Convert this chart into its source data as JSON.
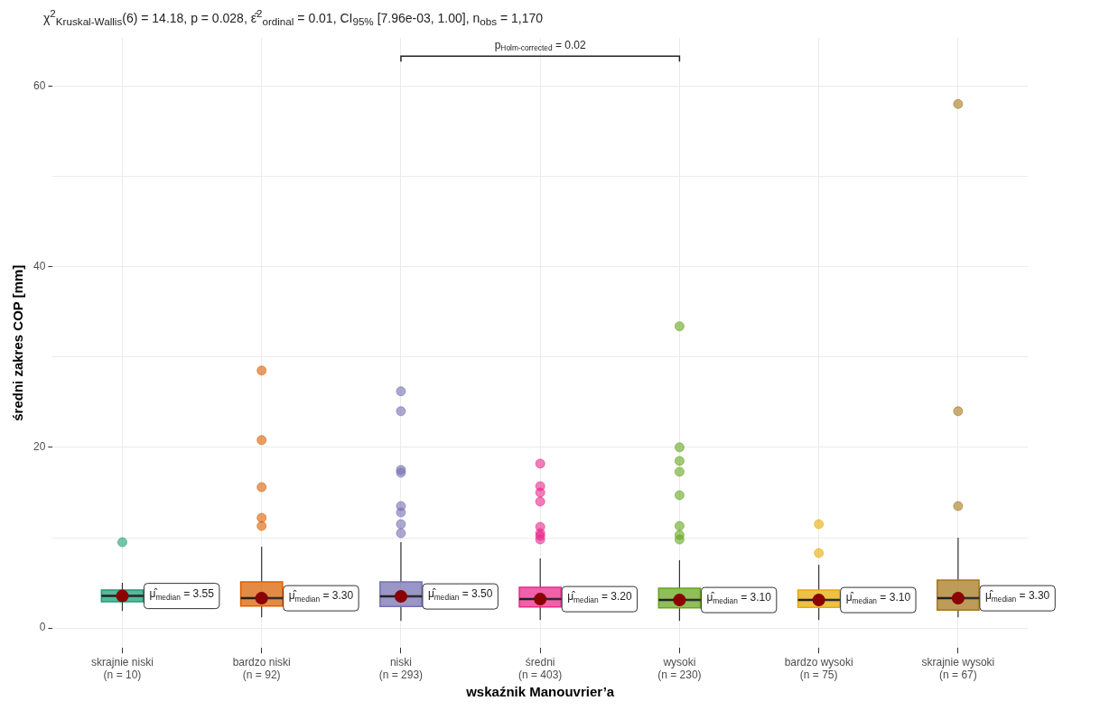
{
  "chart_data": {
    "type": "box",
    "title": "χ$^{2}$$_{Kruskal-Wallis}$(6) = 14.18, p = 0.028, ε̂$^{2}$$_{ordinal}$ = 0.01, CI$_{95%}$ [7.96e-03, 1.00], n$_{obs}$ = 1,170",
    "xlabel": "wskaźnik Manouvrier’a",
    "ylabel": "średni zakres COP [mm]",
    "categories": [
      "skrajnie niski\n(n = 10)",
      "bardzo niski\n(n = 92)",
      "niski\n(n = 293)",
      "średni\n(n = 403)",
      "wysoki\n(n = 230)",
      "bardzo wysoki\n(n = 75)",
      "skrajnie wysoki\n(n = 67)"
    ],
    "colors": [
      "#1b9e77",
      "#d95f02",
      "#7570b3",
      "#e7298a",
      "#66a61e",
      "#e6ab02",
      "#a6761d"
    ],
    "boxes": [
      {
        "low": 1.9,
        "q1": 2.9,
        "median": 3.55,
        "q3": 4.2,
        "high": 5,
        "outliers": [
          9.5
        ]
      },
      {
        "low": 1.2,
        "q1": 2.45,
        "median": 3.3,
        "q3": 5.1,
        "high": 9,
        "outliers": [
          28.5,
          20.8,
          15.6,
          12.2,
          11.3
        ]
      },
      {
        "low": 0.8,
        "q1": 2.4,
        "median": 3.5,
        "q3": 5.1,
        "high": 9.5,
        "outliers": [
          26.2,
          24,
          17.5,
          17.2,
          13.5,
          12.8,
          11.5,
          10.5
        ]
      },
      {
        "low": 0.9,
        "q1": 2.35,
        "median": 3.2,
        "q3": 4.5,
        "high": 7.7,
        "outliers": [
          18.2,
          15.7,
          15,
          14,
          11.2,
          10.5,
          10.2,
          9.8
        ]
      },
      {
        "low": 0.8,
        "q1": 2.25,
        "median": 3.1,
        "q3": 4.4,
        "high": 7.5,
        "outliers": [
          33.4,
          20,
          18.5,
          17.3,
          14.7,
          11.3,
          10.3,
          9.8
        ]
      },
      {
        "low": 0.9,
        "q1": 2.3,
        "median": 3.1,
        "q3": 4.2,
        "high": 7,
        "outliers": [
          11.5,
          8.3
        ]
      },
      {
        "low": 1.2,
        "q1": 2,
        "median": 3.3,
        "q3": 5.3,
        "high": 10,
        "outliers": [
          58,
          24,
          13.5
        ]
      }
    ],
    "annotations": [
      {
        "text": "μ̂$_{median}$ = 3.55",
        "x": "skrajnie niski\n(n = 10)",
        "y": 3.55
      },
      {
        "text": "μ̂$_{median}$ = 3.30",
        "x": "bardzo niski\n(n = 92)",
        "y": 3.3
      },
      {
        "text": "μ̂$_{median}$ = 3.50",
        "x": "niski\n(n = 293)",
        "y": 3.5
      },
      {
        "text": "μ̂$_{median}$ = 3.20",
        "x": "średni\n(n = 403)",
        "y": 3.2
      },
      {
        "text": "μ̂$_{median}$ = 3.10",
        "x": "wysoki\n(n = 230)",
        "y": 3.1
      },
      {
        "text": "μ̂$_{median}$ = 3.10",
        "x": "bardzo wysoki\n(n = 75)",
        "y": 3.1
      },
      {
        "text": "μ̂$_{median}$ = 3.30",
        "x": "skrajnie wysoki\n(n = 67)",
        "y": 3.3
      },
      "p$_{Holm-corrected}$ = 0.02"
    ],
    "ylim": [
      -2.2,
      65.3
    ],
    "yticks": [
      0,
      {
        "value": 10,
        "label": null
      },
      20,
      {
        "value": 30,
        "label": null
      },
      40,
      {
        "value": 50,
        "label": null
      },
      60
    ],
    "grid": true,
    "legend": false
  }
}
